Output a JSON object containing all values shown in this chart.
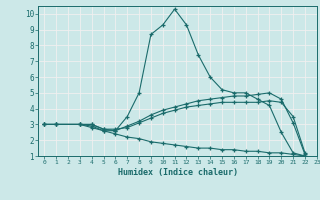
{
  "title": "",
  "xlabel": "Humidex (Indice chaleur)",
  "xlim": [
    -0.5,
    23
  ],
  "ylim": [
    1,
    10.5
  ],
  "yticks": [
    1,
    2,
    3,
    4,
    5,
    6,
    7,
    8,
    9,
    10
  ],
  "xticks": [
    0,
    1,
    2,
    3,
    4,
    5,
    6,
    7,
    8,
    9,
    10,
    11,
    12,
    13,
    14,
    15,
    16,
    17,
    18,
    19,
    20,
    21,
    22,
    23
  ],
  "background_color": "#cce8e8",
  "grid_color": "#f0f0f0",
  "line_color": "#1a6b6b",
  "lines": [
    {
      "x": [
        0,
        1,
        3,
        4,
        5,
        6,
        7,
        8,
        9,
        10,
        11,
        12,
        13,
        14,
        15,
        16,
        17,
        18,
        19,
        20,
        21,
        22
      ],
      "y": [
        3,
        3,
        3,
        2.8,
        2.6,
        2.6,
        3.5,
        5.0,
        8.7,
        9.3,
        10.3,
        9.3,
        7.4,
        6.0,
        5.2,
        5.0,
        5.0,
        4.6,
        4.2,
        2.5,
        1.2,
        1.0
      ]
    },
    {
      "x": [
        0,
        1,
        3,
        4,
        5,
        6,
        7,
        8,
        9,
        10,
        11,
        12,
        13,
        14,
        15,
        16,
        17,
        18,
        19,
        20,
        21,
        22
      ],
      "y": [
        3,
        3,
        3,
        3.0,
        2.7,
        2.6,
        2.9,
        3.2,
        3.6,
        3.9,
        4.1,
        4.3,
        4.5,
        4.6,
        4.7,
        4.8,
        4.8,
        4.9,
        5.0,
        4.6,
        3.1,
        1.1
      ]
    },
    {
      "x": [
        0,
        1,
        3,
        4,
        5,
        6,
        7,
        8,
        9,
        10,
        11,
        12,
        13,
        14,
        15,
        16,
        17,
        18,
        19,
        20,
        21,
        22
      ],
      "y": [
        3,
        3,
        3,
        3.0,
        2.7,
        2.7,
        2.8,
        3.1,
        3.4,
        3.7,
        3.9,
        4.1,
        4.2,
        4.3,
        4.4,
        4.4,
        4.4,
        4.4,
        4.5,
        4.4,
        3.5,
        1.2
      ]
    },
    {
      "x": [
        0,
        1,
        3,
        4,
        5,
        6,
        7,
        8,
        9,
        10,
        11,
        12,
        13,
        14,
        15,
        16,
        17,
        18,
        19,
        20,
        21,
        22
      ],
      "y": [
        3,
        3,
        3,
        2.9,
        2.6,
        2.4,
        2.2,
        2.1,
        1.9,
        1.8,
        1.7,
        1.6,
        1.5,
        1.5,
        1.4,
        1.4,
        1.3,
        1.3,
        1.2,
        1.2,
        1.1,
        1.0
      ]
    }
  ]
}
